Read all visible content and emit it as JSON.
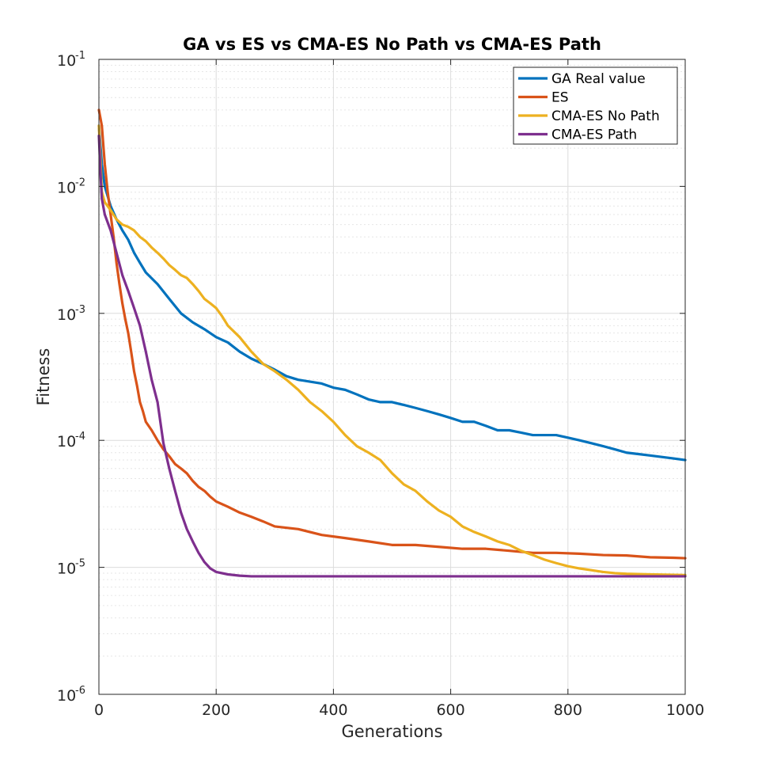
{
  "chart_data": {
    "type": "line",
    "title": "GA vs ES vs CMA-ES No Path vs CMA-ES Path",
    "xlabel": "Generations",
    "ylabel": "Fitness",
    "xlim": [
      0,
      1000
    ],
    "ylim": [
      1e-06,
      0.1
    ],
    "yscale": "log",
    "grid": true,
    "minor_grid": true,
    "legend_position": "top-right",
    "x_ticks": [
      0,
      200,
      400,
      600,
      800,
      1000
    ],
    "x_tick_labels": [
      "0",
      "200",
      "400",
      "600",
      "800",
      "1000"
    ],
    "y_ticks": [
      {
        "value": 0.1,
        "base": "10",
        "exp": "-1"
      },
      {
        "value": 0.01,
        "base": "10",
        "exp": "-2"
      },
      {
        "value": 0.001,
        "base": "10",
        "exp": "-3"
      },
      {
        "value": 0.0001,
        "base": "10",
        "exp": "-4"
      },
      {
        "value": 1e-05,
        "base": "10",
        "exp": "-5"
      },
      {
        "value": 1e-06,
        "base": "10",
        "exp": "-6"
      }
    ],
    "series": [
      {
        "name": "GA Real value",
        "color": "#0072BD",
        "points": [
          [
            0,
            0.03
          ],
          [
            5,
            0.015
          ],
          [
            10,
            0.01
          ],
          [
            20,
            0.007
          ],
          [
            30,
            0.0055
          ],
          [
            40,
            0.0045
          ],
          [
            50,
            0.0038
          ],
          [
            60,
            0.003
          ],
          [
            70,
            0.0025
          ],
          [
            80,
            0.0021
          ],
          [
            100,
            0.0017
          ],
          [
            120,
            0.0013
          ],
          [
            140,
            0.001
          ],
          [
            160,
            0.00085
          ],
          [
            180,
            0.00075
          ],
          [
            200,
            0.00065
          ],
          [
            220,
            0.00059
          ],
          [
            240,
            0.0005
          ],
          [
            260,
            0.00044
          ],
          [
            280,
            0.0004
          ],
          [
            300,
            0.00036
          ],
          [
            320,
            0.00032
          ],
          [
            340,
            0.0003
          ],
          [
            360,
            0.00029
          ],
          [
            380,
            0.00028
          ],
          [
            400,
            0.00026
          ],
          [
            420,
            0.00025
          ],
          [
            440,
            0.00023
          ],
          [
            460,
            0.00021
          ],
          [
            480,
            0.0002
          ],
          [
            500,
            0.0002
          ],
          [
            520,
            0.00019
          ],
          [
            540,
            0.00018
          ],
          [
            560,
            0.00017
          ],
          [
            580,
            0.00016
          ],
          [
            600,
            0.00015
          ],
          [
            620,
            0.00014
          ],
          [
            640,
            0.00014
          ],
          [
            660,
            0.00013
          ],
          [
            680,
            0.00012
          ],
          [
            700,
            0.00012
          ],
          [
            720,
            0.000115
          ],
          [
            740,
            0.00011
          ],
          [
            760,
            0.00011
          ],
          [
            780,
            0.00011
          ],
          [
            800,
            0.000105
          ],
          [
            820,
            0.0001
          ],
          [
            840,
            9.5e-05
          ],
          [
            860,
            9e-05
          ],
          [
            880,
            8.5e-05
          ],
          [
            900,
            8e-05
          ],
          [
            920,
            7.8e-05
          ],
          [
            940,
            7.6e-05
          ],
          [
            960,
            7.4e-05
          ],
          [
            980,
            7.2e-05
          ],
          [
            1000,
            7e-05
          ]
        ]
      },
      {
        "name": "ES",
        "color": "#D95319",
        "points": [
          [
            0,
            0.04
          ],
          [
            5,
            0.03
          ],
          [
            10,
            0.015
          ],
          [
            15,
            0.009
          ],
          [
            20,
            0.006
          ],
          [
            25,
            0.004
          ],
          [
            30,
            0.0025
          ],
          [
            35,
            0.0017
          ],
          [
            40,
            0.0012
          ],
          [
            45,
            0.0009
          ],
          [
            50,
            0.0007
          ],
          [
            55,
            0.0005
          ],
          [
            60,
            0.00035
          ],
          [
            65,
            0.00027
          ],
          [
            70,
            0.0002
          ],
          [
            75,
            0.00017
          ],
          [
            80,
            0.00014
          ],
          [
            90,
            0.00012
          ],
          [
            100,
            0.0001
          ],
          [
            110,
            8.5e-05
          ],
          [
            120,
            7.5e-05
          ],
          [
            130,
            6.5e-05
          ],
          [
            140,
            6e-05
          ],
          [
            150,
            5.5e-05
          ],
          [
            160,
            4.8e-05
          ],
          [
            170,
            4.3e-05
          ],
          [
            180,
            4e-05
          ],
          [
            190,
            3.6e-05
          ],
          [
            200,
            3.3e-05
          ],
          [
            220,
            3e-05
          ],
          [
            240,
            2.7e-05
          ],
          [
            260,
            2.5e-05
          ],
          [
            280,
            2.3e-05
          ],
          [
            300,
            2.1e-05
          ],
          [
            340,
            2e-05
          ],
          [
            380,
            1.8e-05
          ],
          [
            420,
            1.7e-05
          ],
          [
            460,
            1.6e-05
          ],
          [
            500,
            1.5e-05
          ],
          [
            540,
            1.5e-05
          ],
          [
            580,
            1.45e-05
          ],
          [
            620,
            1.4e-05
          ],
          [
            660,
            1.4e-05
          ],
          [
            700,
            1.35e-05
          ],
          [
            740,
            1.3e-05
          ],
          [
            780,
            1.3e-05
          ],
          [
            820,
            1.28e-05
          ],
          [
            860,
            1.25e-05
          ],
          [
            900,
            1.24e-05
          ],
          [
            940,
            1.2e-05
          ],
          [
            980,
            1.19e-05
          ],
          [
            1000,
            1.18e-05
          ]
        ]
      },
      {
        "name": "CMA-ES No Path",
        "color": "#EDB120",
        "points": [
          [
            0,
            0.03
          ],
          [
            3,
            0.015
          ],
          [
            5,
            0.009
          ],
          [
            10,
            0.0075
          ],
          [
            20,
            0.0065
          ],
          [
            30,
            0.0055
          ],
          [
            40,
            0.005
          ],
          [
            50,
            0.0048
          ],
          [
            60,
            0.0045
          ],
          [
            70,
            0.004
          ],
          [
            80,
            0.0037
          ],
          [
            90,
            0.0033
          ],
          [
            100,
            0.003
          ],
          [
            110,
            0.0027
          ],
          [
            120,
            0.0024
          ],
          [
            130,
            0.0022
          ],
          [
            140,
            0.002
          ],
          [
            150,
            0.0019
          ],
          [
            160,
            0.0017
          ],
          [
            170,
            0.0015
          ],
          [
            180,
            0.0013
          ],
          [
            190,
            0.0012
          ],
          [
            200,
            0.0011
          ],
          [
            210,
            0.00095
          ],
          [
            220,
            0.0008
          ],
          [
            240,
            0.00065
          ],
          [
            260,
            0.0005
          ],
          [
            280,
            0.0004
          ],
          [
            300,
            0.00035
          ],
          [
            320,
            0.0003
          ],
          [
            340,
            0.00025
          ],
          [
            360,
            0.0002
          ],
          [
            380,
            0.00017
          ],
          [
            400,
            0.00014
          ],
          [
            420,
            0.00011
          ],
          [
            440,
            9e-05
          ],
          [
            460,
            8e-05
          ],
          [
            480,
            7e-05
          ],
          [
            500,
            5.5e-05
          ],
          [
            520,
            4.5e-05
          ],
          [
            540,
            4e-05
          ],
          [
            560,
            3.3e-05
          ],
          [
            580,
            2.8e-05
          ],
          [
            600,
            2.5e-05
          ],
          [
            620,
            2.1e-05
          ],
          [
            640,
            1.9e-05
          ],
          [
            660,
            1.75e-05
          ],
          [
            680,
            1.6e-05
          ],
          [
            700,
            1.5e-05
          ],
          [
            720,
            1.35e-05
          ],
          [
            740,
            1.25e-05
          ],
          [
            760,
            1.15e-05
          ],
          [
            780,
            1.08e-05
          ],
          [
            800,
            1.02e-05
          ],
          [
            820,
            9.8e-06
          ],
          [
            840,
            9.5e-06
          ],
          [
            860,
            9.2e-06
          ],
          [
            880,
            9e-06
          ],
          [
            900,
            8.9e-06
          ],
          [
            940,
            8.8e-06
          ],
          [
            1000,
            8.7e-06
          ]
        ]
      },
      {
        "name": "CMA-ES Path",
        "color": "#7E2F8E",
        "points": [
          [
            0,
            0.025
          ],
          [
            3,
            0.012
          ],
          [
            5,
            0.008
          ],
          [
            10,
            0.006
          ],
          [
            20,
            0.0045
          ],
          [
            30,
            0.003
          ],
          [
            40,
            0.002
          ],
          [
            50,
            0.0015
          ],
          [
            60,
            0.0011
          ],
          [
            70,
            0.0008
          ],
          [
            80,
            0.0005
          ],
          [
            90,
            0.0003
          ],
          [
            100,
            0.0002
          ],
          [
            110,
            9.5e-05
          ],
          [
            120,
            6e-05
          ],
          [
            130,
            4e-05
          ],
          [
            140,
            2.7e-05
          ],
          [
            150,
            2e-05
          ],
          [
            160,
            1.6e-05
          ],
          [
            170,
            1.3e-05
          ],
          [
            180,
            1.1e-05
          ],
          [
            190,
            9.8e-06
          ],
          [
            200,
            9.2e-06
          ],
          [
            220,
            8.8e-06
          ],
          [
            240,
            8.6e-06
          ],
          [
            260,
            8.5e-06
          ],
          [
            300,
            8.5e-06
          ],
          [
            1000,
            8.5e-06
          ]
        ]
      }
    ]
  }
}
